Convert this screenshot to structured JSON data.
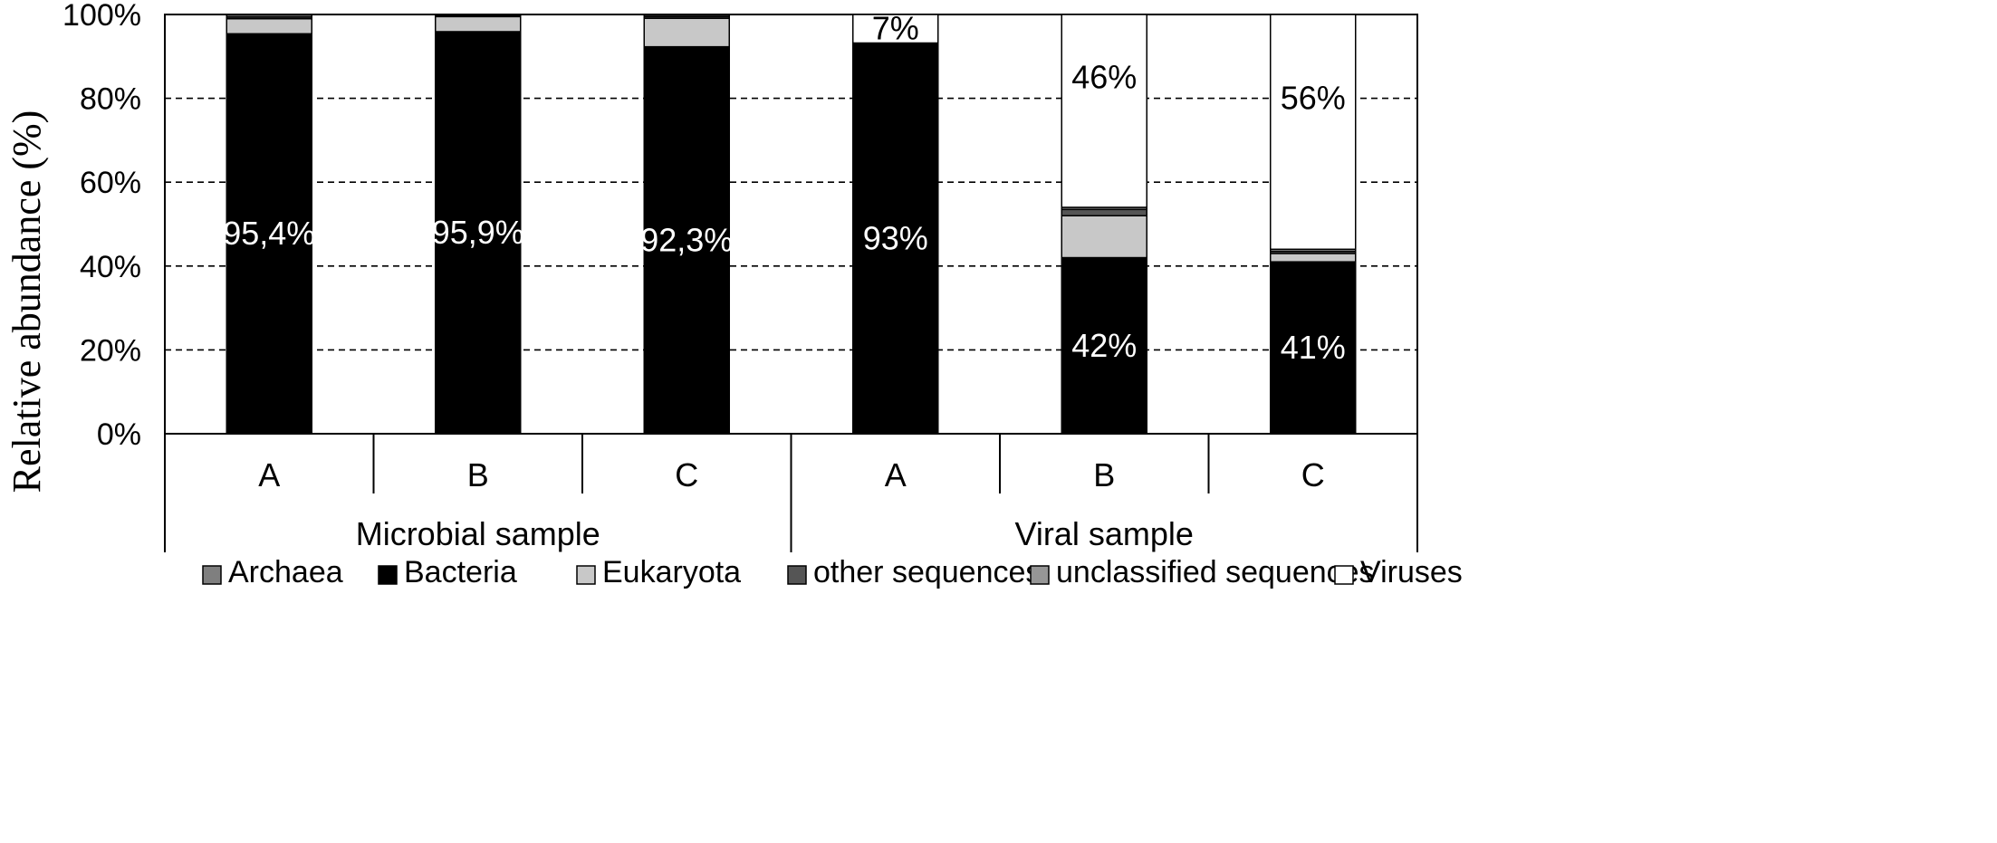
{
  "chart_data": {
    "type": "bar",
    "stacked": true,
    "ylabel": "Relative abundance (%)",
    "ylim": [
      0,
      100
    ],
    "yticks": [
      "0%",
      "20%",
      "40%",
      "60%",
      "80%",
      "100%"
    ],
    "grid": "horizontal dashed",
    "legend_position": "bottom",
    "groups": [
      {
        "label": "Microbial sample",
        "categories": [
          "A",
          "B",
          "C"
        ]
      },
      {
        "label": "Viral sample",
        "categories": [
          "A",
          "B",
          "C"
        ]
      }
    ],
    "categories": [
      "A",
      "B",
      "C",
      "A",
      "B",
      "C"
    ],
    "series": [
      {
        "name": "Archaea",
        "color": "#7f7f7f",
        "values": [
          0.1,
          0.1,
          0.1,
          0,
          0,
          0
        ]
      },
      {
        "name": "Bacteria",
        "color": "#000000",
        "values": [
          95.4,
          95.9,
          92.3,
          93,
          42,
          41
        ]
      },
      {
        "name": "Eukaryota",
        "color": "#c8c8c8",
        "values": [
          3.6,
          3.6,
          6.8,
          0.2,
          10,
          2
        ]
      },
      {
        "name": "other sequences",
        "color": "#555555",
        "values": [
          0.4,
          0.2,
          0.4,
          0,
          1.5,
          0.5
        ]
      },
      {
        "name": "unclassified sequences",
        "color": "#969696",
        "values": [
          0.5,
          0.2,
          0.4,
          0,
          0.5,
          0.5
        ]
      },
      {
        "name": "Viruses",
        "color": "#ffffff",
        "values": [
          0,
          0,
          0,
          6.8,
          46,
          56
        ]
      }
    ],
    "data_labels": [
      {
        "bar": 0,
        "series": "Bacteria",
        "text": "95,4%",
        "value": 95.4
      },
      {
        "bar": 1,
        "series": "Bacteria",
        "text": "95,9%",
        "value": 95.9
      },
      {
        "bar": 2,
        "series": "Bacteria",
        "text": "92,3%",
        "value": 92.3
      },
      {
        "bar": 3,
        "series": "Bacteria",
        "text": "93%",
        "value": 93
      },
      {
        "bar": 3,
        "series": "Viruses",
        "text": "7%",
        "value": 7
      },
      {
        "bar": 4,
        "series": "Bacteria",
        "text": "42%",
        "value": 42
      },
      {
        "bar": 4,
        "series": "Viruses",
        "text": "46%",
        "value": 46
      },
      {
        "bar": 5,
        "series": "Bacteria",
        "text": "41%",
        "value": 41
      },
      {
        "bar": 5,
        "series": "Viruses",
        "text": "56%",
        "value": 56
      }
    ]
  }
}
